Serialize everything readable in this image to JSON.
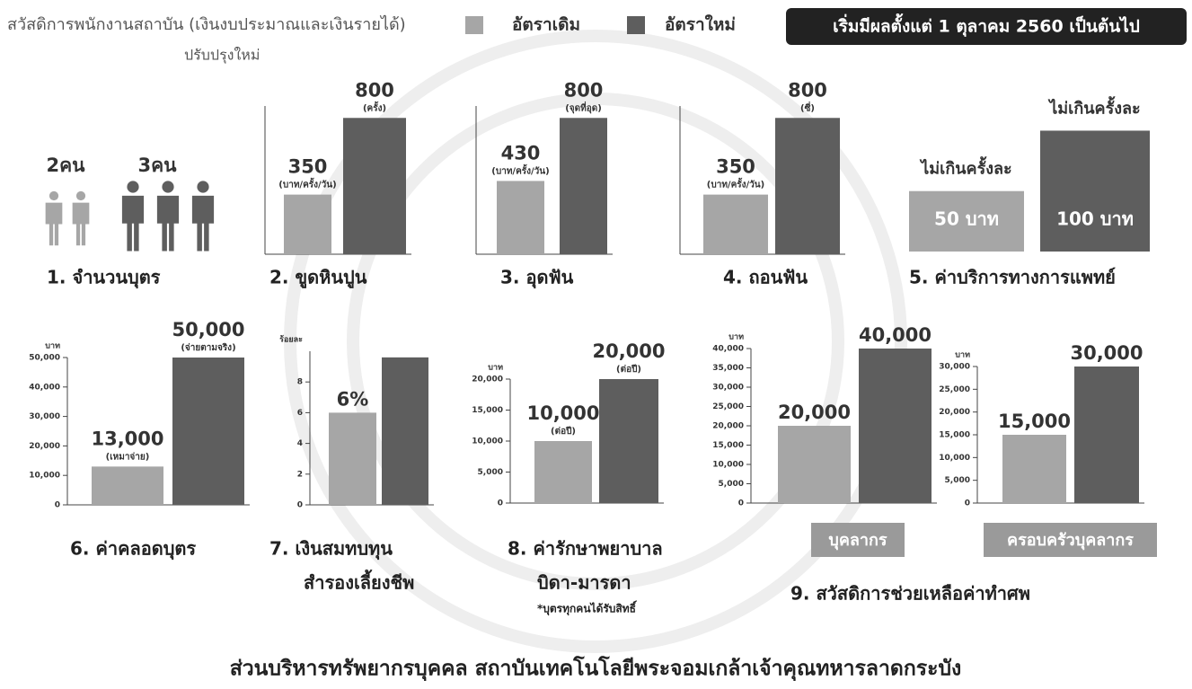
{
  "header": {
    "title": "สวัสดิการพนักงานสถาบัน (เงินงบประมาณและเงินรายได้)",
    "subtitle": "ปรับปรุงใหม่",
    "legend": [
      {
        "name": "อัตราเดิม",
        "color": "#a6a6a6"
      },
      {
        "name": "อัตราใหม่",
        "color": "#5e5e5e"
      }
    ],
    "effective": "เริ่มมีผลตั้งแต่ 1 ตุลาคม 2560 เป็นต้นไป"
  },
  "footer": "ส่วนบริหารทรัพยากรบุคคล  สถาบันเทคโนโลยีพระจอมเกล้าเจ้าคุณทหารลาดกระบัง",
  "chart_data": [
    {
      "type": "pictogram",
      "title": "1. จำนวนบุตร",
      "values": [
        2,
        3
      ],
      "value_labels": [
        "2คน",
        "3คน"
      ],
      "colors": [
        "#a6a6a6",
        "#5e5e5e"
      ]
    },
    {
      "type": "bar",
      "title": "2. ขูดหินปูน",
      "values": [
        350,
        800
      ],
      "notes": [
        "(บาท/ครั้ง/วัน)",
        "(ครั้ง)"
      ],
      "colors": [
        "#a6a6a6",
        "#5e5e5e"
      ],
      "ylim": [
        0,
        870
      ]
    },
    {
      "type": "bar",
      "title": "3. อุดฟัน",
      "values": [
        430,
        800
      ],
      "notes": [
        "(บาท/ครั้ง/วัน)",
        "(จุดที่อุด)"
      ],
      "colors": [
        "#a6a6a6",
        "#5e5e5e"
      ],
      "ylim": [
        0,
        870
      ]
    },
    {
      "type": "bar",
      "title": "4. ถอนฟัน",
      "values": [
        350,
        800
      ],
      "notes": [
        "(บาท/ครั้ง/วัน)",
        "(ซี่)"
      ],
      "colors": [
        "#a6a6a6",
        "#5e5e5e"
      ],
      "ylim": [
        0,
        870
      ]
    },
    {
      "type": "box",
      "title": "5. ค่าบริการทางการแพทย์",
      "values": [
        50,
        100
      ],
      "value_labels": [
        "50 บาท",
        "100 บาท"
      ],
      "headings": [
        "ไม่เกินครั้งละ",
        "ไม่เกินครั้งละ"
      ],
      "colors": [
        "#a6a6a6",
        "#5e5e5e"
      ],
      "ylim": [
        0,
        110
      ]
    },
    {
      "type": "bar",
      "title": "6. ค่าคลอดบุตร",
      "y_label": "บาท",
      "values": [
        13000,
        50000
      ],
      "value_labels": [
        "13,000",
        "50,000"
      ],
      "notes": [
        "(เหมาจ่าย)",
        "(จ่ายตามจริง)"
      ],
      "colors": [
        "#a6a6a6",
        "#5e5e5e"
      ],
      "ylim": [
        0,
        50000
      ],
      "yticks": [
        0,
        {
          "value": 10000,
          "label": "10,000"
        },
        {
          "value": 20000,
          "label": "20,000"
        },
        {
          "value": 30000,
          "label": "30,000"
        },
        {
          "value": 40000,
          "label": "40,000"
        },
        {
          "value": 50000,
          "label": "50,000"
        }
      ]
    },
    {
      "type": "bar",
      "title": [
        "7. เงินสมทบทุน",
        "สำรองเลี้ยงชีพ"
      ],
      "y_label": "ร้อยละ",
      "values": [
        6,
        9.6
      ],
      "value_labels": [
        "6%",
        null
      ],
      "colors": [
        "#a6a6a6",
        "#5e5e5e"
      ],
      "ylim": [
        0,
        10
      ],
      "yticks": [
        0,
        2,
        4,
        6,
        8
      ]
    },
    {
      "type": "bar",
      "title": [
        "8. ค่ารักษาพยาบาล",
        "บิดา-มารดา"
      ],
      "note": "*บุตรทุกคนได้รับสิทธิ์",
      "y_label": "บาท",
      "values": [
        10000,
        20000
      ],
      "value_labels": [
        "10,000",
        "20,000"
      ],
      "notes": [
        "(ต่อปี)",
        "(ต่อปี)"
      ],
      "colors": [
        "#a6a6a6",
        "#5e5e5e"
      ],
      "ylim": [
        0,
        20000
      ],
      "yticks": [
        0,
        {
          "value": 5000,
          "label": "5,000"
        },
        {
          "value": 10000,
          "label": "10,000"
        },
        {
          "value": 15000,
          "label": "15,000"
        },
        {
          "value": 20000,
          "label": "20,000"
        }
      ]
    },
    {
      "type": "bar",
      "title": "9. สวัสดิการช่วยเหลือค่าทำศพ",
      "label": "บุคลากร",
      "y_label": "บาท",
      "values": [
        20000,
        40000
      ],
      "value_labels": [
        "20,000",
        "40,000"
      ],
      "colors": [
        "#a6a6a6",
        "#5e5e5e"
      ],
      "ylim": [
        0,
        40000
      ],
      "yticks": [
        0,
        {
          "value": 5000,
          "label": "5,000"
        },
        {
          "value": 10000,
          "label": "10,000"
        },
        {
          "value": 15000,
          "label": "15,000"
        },
        {
          "value": 20000,
          "label": "20,000"
        },
        {
          "value": 25000,
          "label": "25,000"
        },
        {
          "value": 30000,
          "label": "30,000"
        },
        {
          "value": 35000,
          "label": "35,000"
        },
        {
          "value": 40000,
          "label": "40,000"
        }
      ]
    },
    {
      "type": "bar",
      "label": "ครอบครัวบุคลากร",
      "y_label": "บาท",
      "values": [
        15000,
        30000
      ],
      "value_labels": [
        "15,000",
        "30,000"
      ],
      "colors": [
        "#a6a6a6",
        "#5e5e5e"
      ],
      "ylim": [
        0,
        30000
      ],
      "yticks": [
        0,
        {
          "value": 5000,
          "label": "5,000"
        },
        {
          "value": 10000,
          "label": "10,000"
        },
        {
          "value": 15000,
          "label": "15,000"
        },
        {
          "value": 20000,
          "label": "20,000"
        },
        {
          "value": 25000,
          "label": "25,000"
        },
        {
          "value": 30000,
          "label": "30,000"
        }
      ]
    }
  ]
}
